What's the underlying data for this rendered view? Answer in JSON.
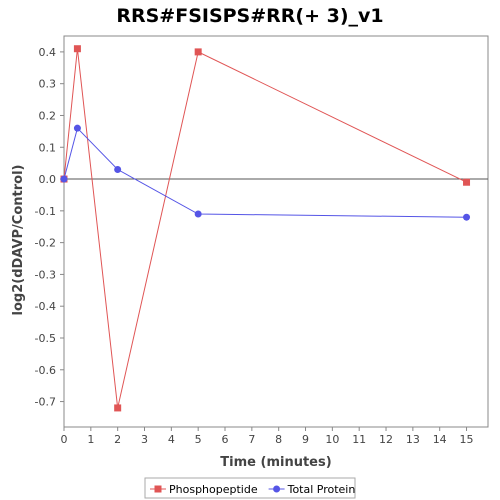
{
  "chart_data": {
    "type": "line",
    "title": "RRS#FSISPS#RR(+ 3)_v1",
    "xlabel": "Time (minutes)",
    "ylabel": "log2(dDAVP/Control)",
    "xlim": [
      0,
      15.8
    ],
    "ylim": [
      -0.78,
      0.45
    ],
    "x_ticks": [
      0,
      1,
      2,
      3,
      4,
      5,
      6,
      7,
      8,
      9,
      10,
      11,
      12,
      13,
      14,
      15
    ],
    "y_ticks": [
      0.4,
      0.3,
      0.2,
      0.1,
      0.0,
      -0.1,
      -0.2,
      -0.3,
      -0.4,
      -0.5,
      -0.6,
      -0.7
    ],
    "y_tick_labels": [
      "0.4",
      "0.3",
      "0.2",
      "0.1",
      "0.0",
      "-0.1",
      "-0.2",
      "-0.3",
      "-0.4",
      "-0.5",
      "-0.6",
      "-0.7"
    ],
    "grid": false,
    "zero_line": true,
    "legend_position": "bottom",
    "series": [
      {
        "name": "Phosphopeptide",
        "color": "#e05555",
        "marker": "square",
        "x": [
          0,
          0.5,
          2,
          5,
          15
        ],
        "y": [
          0.0,
          0.41,
          -0.72,
          0.4,
          -0.01
        ]
      },
      {
        "name": "Total Protein",
        "color": "#5555e6",
        "marker": "circle",
        "x": [
          0,
          0.5,
          2,
          5,
          15
        ],
        "y": [
          0.0,
          0.16,
          0.03,
          -0.11,
          -0.12
        ]
      }
    ]
  }
}
